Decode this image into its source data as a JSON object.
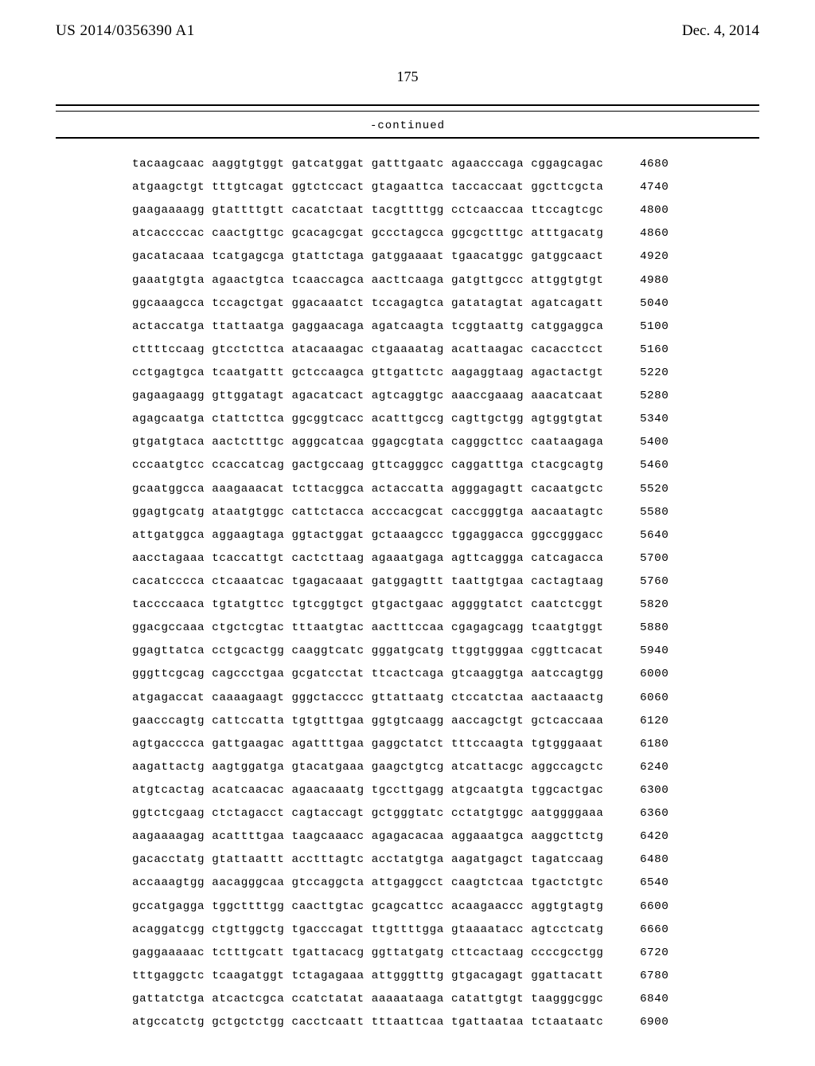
{
  "header": {
    "publication_number": "US 2014/0356390 A1",
    "publication_date": "Dec. 4, 2014"
  },
  "page_number": "175",
  "continued_label": "-continued",
  "sequence": {
    "group_gap": " ",
    "rows": [
      {
        "groups": [
          "tacaagcaac",
          "aaggtgtggt",
          "gatcatggat",
          "gatttgaatc",
          "agaacccaga",
          "cggagcagac"
        ],
        "pos": 4680
      },
      {
        "groups": [
          "atgaagctgt",
          "tttgtcagat",
          "ggtctccact",
          "gtagaattca",
          "taccaccaat",
          "ggcttcgcta"
        ],
        "pos": 4740
      },
      {
        "groups": [
          "gaagaaaagg",
          "gtattttgtt",
          "cacatctaat",
          "tacgttttgg",
          "cctcaaccaa",
          "ttccagtcgc"
        ],
        "pos": 4800
      },
      {
        "groups": [
          "atcaccccac",
          "caactgttgc",
          "gcacagcgat",
          "gccctagcca",
          "ggcgctttgc",
          "atttgacatg"
        ],
        "pos": 4860
      },
      {
        "groups": [
          "gacatacaaa",
          "tcatgagcga",
          "gtattctaga",
          "gatggaaaat",
          "tgaacatggc",
          "gatggcaact"
        ],
        "pos": 4920
      },
      {
        "groups": [
          "gaaatgtgta",
          "agaactgtca",
          "tcaaccagca",
          "aacttcaaga",
          "gatgttgccc",
          "attggtgtgt"
        ],
        "pos": 4980
      },
      {
        "groups": [
          "ggcaaagcca",
          "tccagctgat",
          "ggacaaatct",
          "tccagagtca",
          "gatatagtat",
          "agatcagatt"
        ],
        "pos": 5040
      },
      {
        "groups": [
          "actaccatga",
          "ttattaatga",
          "gaggaacaga",
          "agatcaagta",
          "tcggtaattg",
          "catggaggca"
        ],
        "pos": 5100
      },
      {
        "groups": [
          "cttttccaag",
          "gtcctcttca",
          "atacaaagac",
          "ctgaaaatag",
          "acattaagac",
          "cacacctcct"
        ],
        "pos": 5160
      },
      {
        "groups": [
          "cctgagtgca",
          "tcaatgattt",
          "gctccaagca",
          "gttgattctc",
          "aagaggtaag",
          "agactactgt"
        ],
        "pos": 5220
      },
      {
        "groups": [
          "gagaagaagg",
          "gttggatagt",
          "agacatcact",
          "agtcaggtgc",
          "aaaccgaaag",
          "aaacatcaat"
        ],
        "pos": 5280
      },
      {
        "groups": [
          "agagcaatga",
          "ctattcttca",
          "ggcggtcacc",
          "acatttgccg",
          "cagttgctgg",
          "agtggtgtat"
        ],
        "pos": 5340
      },
      {
        "groups": [
          "gtgatgtaca",
          "aactctttgc",
          "agggcatcaa",
          "ggagcgtata",
          "cagggcttcc",
          "caataagaga"
        ],
        "pos": 5400
      },
      {
        "groups": [
          "cccaatgtcc",
          "ccaccatcag",
          "gactgccaag",
          "gttcagggcc",
          "caggatttga",
          "ctacgcagtg"
        ],
        "pos": 5460
      },
      {
        "groups": [
          "gcaatggcca",
          "aaagaaacat",
          "tcttacggca",
          "actaccatta",
          "agggagagtt",
          "cacaatgctc"
        ],
        "pos": 5520
      },
      {
        "groups": [
          "ggagtgcatg",
          "ataatgtggc",
          "cattctacca",
          "acccacgcat",
          "caccgggtga",
          "aacaatagtc"
        ],
        "pos": 5580
      },
      {
        "groups": [
          "attgatggca",
          "aggaagtaga",
          "ggtactggat",
          "gctaaagccc",
          "tggaggacca",
          "ggccgggacc"
        ],
        "pos": 5640
      },
      {
        "groups": [
          "aacctagaaa",
          "tcaccattgt",
          "cactcttaag",
          "agaaatgaga",
          "agttcaggga",
          "catcagacca"
        ],
        "pos": 5700
      },
      {
        "groups": [
          "cacatcccca",
          "ctcaaatcac",
          "tgagacaaat",
          "gatggagttt",
          "taattgtgaa",
          "cactagtaag"
        ],
        "pos": 5760
      },
      {
        "groups": [
          "taccccaaca",
          "tgtatgttcc",
          "tgtcggtgct",
          "gtgactgaac",
          "aggggtatct",
          "caatctcggt"
        ],
        "pos": 5820
      },
      {
        "groups": [
          "ggacgccaaa",
          "ctgctcgtac",
          "tttaatgtac",
          "aactttccaa",
          "cgagagcagg",
          "tcaatgtggt"
        ],
        "pos": 5880
      },
      {
        "groups": [
          "ggagttatca",
          "cctgcactgg",
          "caaggtcatc",
          "gggatgcatg",
          "ttggtgggaa",
          "cggttcacat"
        ],
        "pos": 5940
      },
      {
        "groups": [
          "gggttcgcag",
          "cagccctgaa",
          "gcgatcctat",
          "ttcactcaga",
          "gtcaaggtga",
          "aatccagtgg"
        ],
        "pos": 6000
      },
      {
        "groups": [
          "atgagaccat",
          "caaaagaagt",
          "gggctacccc",
          "gttattaatg",
          "ctccatctaa",
          "aactaaactg"
        ],
        "pos": 6060
      },
      {
        "groups": [
          "gaacccagtg",
          "cattccatta",
          "tgtgtttgaa",
          "ggtgtcaagg",
          "aaccagctgt",
          "gctcaccaaa"
        ],
        "pos": 6120
      },
      {
        "groups": [
          "agtgacccca",
          "gattgaagac",
          "agattttgaa",
          "gaggctatct",
          "tttccaagta",
          "tgtgggaaat"
        ],
        "pos": 6180
      },
      {
        "groups": [
          "aagattactg",
          "aagtggatga",
          "gtacatgaaa",
          "gaagctgtcg",
          "atcattacgc",
          "aggccagctc"
        ],
        "pos": 6240
      },
      {
        "groups": [
          "atgtcactag",
          "acatcaacac",
          "agaacaaatg",
          "tgccttgagg",
          "atgcaatgta",
          "tggcactgac"
        ],
        "pos": 6300
      },
      {
        "groups": [
          "ggtctcgaag",
          "ctctagacct",
          "cagtaccagt",
          "gctgggtatc",
          "cctatgtggc",
          "aatggggaaa"
        ],
        "pos": 6360
      },
      {
        "groups": [
          "aagaaaagag",
          "acattttgaa",
          "taagcaaacc",
          "agagacacaa",
          "aggaaatgca",
          "aaggcttctg"
        ],
        "pos": 6420
      },
      {
        "groups": [
          "gacacctatg",
          "gtattaattt",
          "acctttagtc",
          "acctatgtga",
          "aagatgagct",
          "tagatccaag"
        ],
        "pos": 6480
      },
      {
        "groups": [
          "accaaagtgg",
          "aacagggcaa",
          "gtccaggcta",
          "attgaggcct",
          "caagtctcaa",
          "tgactctgtc"
        ],
        "pos": 6540
      },
      {
        "groups": [
          "gccatgagga",
          "tggcttttgg",
          "caacttgtac",
          "gcagcattcc",
          "acaagaaccc",
          "aggtgtagtg"
        ],
        "pos": 6600
      },
      {
        "groups": [
          "acaggatcgg",
          "ctgttggctg",
          "tgacccagat",
          "ttgttttgga",
          "gtaaaatacc",
          "agtcctcatg"
        ],
        "pos": 6660
      },
      {
        "groups": [
          "gaggaaaaac",
          "tctttgcatt",
          "tgattacacg",
          "ggttatgatg",
          "cttcactaag",
          "ccccgcctgg"
        ],
        "pos": 6720
      },
      {
        "groups": [
          "tttgaggctc",
          "tcaagatggt",
          "tctagagaaa",
          "attgggtttg",
          "gtgacagagt",
          "ggattacatt"
        ],
        "pos": 6780
      },
      {
        "groups": [
          "gattatctga",
          "atcactcgca",
          "ccatctatat",
          "aaaaataaga",
          "catattgtgt",
          "taagggcggc"
        ],
        "pos": 6840
      },
      {
        "groups": [
          "atgccatctg",
          "gctgctctgg",
          "cacctcaatt",
          "tttaattcaa",
          "tgattaataa",
          "tctaataatc"
        ],
        "pos": 6900
      }
    ]
  }
}
